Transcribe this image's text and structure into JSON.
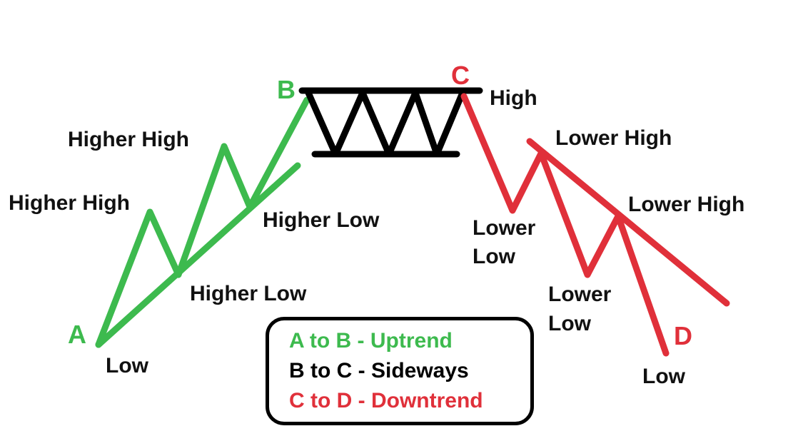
{
  "colors": {
    "uptrend": "#3dba4e",
    "sideways": "#000000",
    "downtrend": "#e0303a",
    "text": "#111111"
  },
  "points": {
    "a": "A",
    "b": "B",
    "c": "C",
    "d": "D"
  },
  "labels": {
    "low_a": "Low",
    "higher_high_1": "Higher High",
    "higher_high_2": "Higher High",
    "higher_low_1": "Higher Low",
    "higher_low_2": "Higher Low",
    "high_c": "High",
    "lower_high_1": "Lower High",
    "lower_high_2": "Lower High",
    "lower_low_1_line1": "Lower",
    "lower_low_1_line2": "Low",
    "lower_low_2_line1": "Lower",
    "lower_low_2_line2": "Low",
    "low_d": "Low"
  },
  "legend": {
    "uptrend": "A to B - Uptrend",
    "sideways": "B to C - Sideways",
    "downtrend": "C to D - Downtrend"
  }
}
